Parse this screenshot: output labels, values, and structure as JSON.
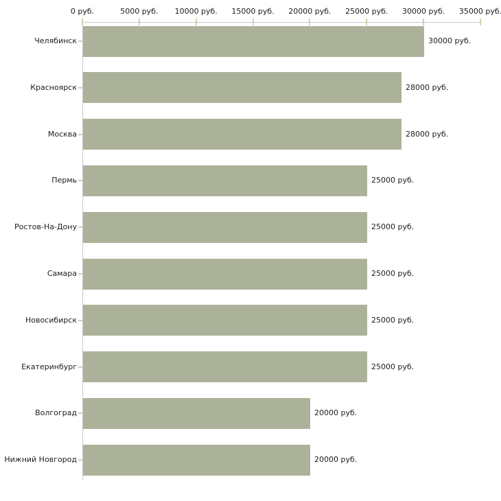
{
  "chart_data": {
    "type": "bar",
    "orientation": "horizontal",
    "title": "",
    "xlabel": "",
    "ylabel": "",
    "unit": "руб.",
    "categories": [
      "Челябинск",
      "Красноярск",
      "Москва",
      "Пермь",
      "Ростов-На-Дону",
      "Самара",
      "Новосибирск",
      "Екатеринбург",
      "Волгоград",
      "Нижний Новгород"
    ],
    "values": [
      30000,
      28000,
      28000,
      25000,
      25000,
      25000,
      25000,
      25000,
      20000,
      20000
    ],
    "value_labels": [
      "30000 руб.",
      "28000 руб.",
      "28000 руб.",
      "25000 руб.",
      "25000 руб.",
      "25000 руб.",
      "25000 руб.",
      "25000 руб.",
      "20000 руб.",
      "20000 руб."
    ],
    "x_axis": {
      "position": "top",
      "range": [
        0,
        35000
      ],
      "ticks": [
        0,
        5000,
        10000,
        15000,
        20000,
        25000,
        30000,
        35000
      ],
      "tick_labels": [
        "0 руб.",
        "5000 руб.",
        "10000 руб.",
        "15000 руб.",
        "20000 руб.",
        "25000 руб.",
        "30000 руб.",
        "35000 руб."
      ]
    },
    "grid": false,
    "legend": false,
    "colors": {
      "bar": "#acb29a",
      "axis_line": "#c9c9c9",
      "tick_mark": "#cfd1a8",
      "text": "#1c1c1c",
      "background": "#ffffff"
    }
  }
}
